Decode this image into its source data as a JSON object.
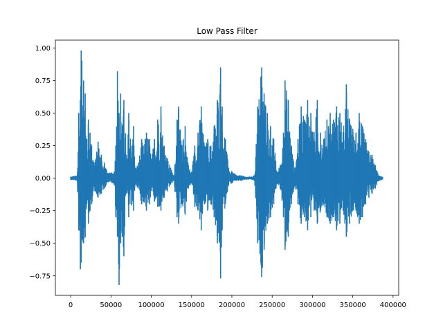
{
  "chart_data": {
    "type": "line",
    "title": "Low Pass Filter",
    "xlabel": "",
    "ylabel": "",
    "xlim": [
      -19000,
      407000
    ],
    "ylim": [
      -0.9,
      1.06
    ],
    "x_ticks": [
      0,
      50000,
      100000,
      150000,
      200000,
      250000,
      300000,
      350000,
      400000
    ],
    "x_tick_labels": [
      "0",
      "50000",
      "100000",
      "150000",
      "200000",
      "250000",
      "300000",
      "350000",
      "400000"
    ],
    "y_ticks": [
      -0.75,
      -0.5,
      -0.25,
      0.0,
      0.25,
      0.5,
      0.75,
      1.0
    ],
    "y_tick_labels": [
      "−0.75",
      "−0.50",
      "−0.25",
      "0.00",
      "0.25",
      "0.50",
      "0.75",
      "1.00"
    ],
    "grid": false,
    "line_color": "#1f77b4",
    "series": [
      {
        "x_min": 0,
        "x_max": 387000,
        "envelope_x": [
          0,
          8000,
          10000,
          12000,
          13000,
          16000,
          18000,
          20000,
          22000,
          24000,
          26000,
          30000,
          34000,
          38000,
          42000,
          46000,
          50000,
          54000,
          56000,
          58000,
          60000,
          62000,
          64000,
          66000,
          70000,
          72000,
          76000,
          78000,
          80000,
          84000,
          88000,
          90000,
          94000,
          98000,
          100000,
          104000,
          108000,
          112000,
          116000,
          120000,
          124000,
          128000,
          132000,
          134000,
          138000,
          142000,
          146000,
          150000,
          154000,
          158000,
          162000,
          166000,
          170000,
          174000,
          178000,
          182000,
          186000,
          188000,
          192000,
          196000,
          200000,
          204000,
          208000,
          212000,
          216000,
          220000,
          224000,
          228000,
          232000,
          236000,
          237000,
          240000,
          244000,
          248000,
          252000,
          256000,
          260000,
          264000,
          266000,
          270000,
          274000,
          278000,
          282000,
          286000,
          290000,
          294000,
          298000,
          302000,
          306000,
          310000,
          314000,
          318000,
          322000,
          326000,
          330000,
          334000,
          338000,
          342000,
          346000,
          350000,
          354000,
          358000,
          362000,
          366000,
          370000,
          374000,
          378000,
          382000,
          387000
        ],
        "envelope_upper": [
          0.01,
          0.02,
          0.5,
          0.6,
          0.98,
          0.75,
          0.65,
          0.3,
          0.45,
          0.35,
          0.25,
          0.12,
          0.28,
          0.18,
          0.12,
          0.04,
          0.04,
          0.05,
          0.25,
          0.82,
          0.5,
          0.65,
          0.4,
          0.6,
          0.15,
          0.5,
          0.25,
          0.4,
          0.08,
          0.12,
          0.3,
          0.25,
          0.35,
          0.3,
          0.15,
          0.3,
          0.45,
          0.55,
          0.25,
          0.15,
          0.08,
          0.02,
          0.45,
          0.55,
          0.25,
          0.4,
          0.1,
          0.05,
          0.25,
          0.35,
          0.55,
          0.25,
          0.3,
          0.25,
          0.4,
          0.6,
          0.85,
          0.55,
          0.3,
          0.08,
          0.05,
          0.03,
          0.02,
          0.02,
          0.01,
          0.01,
          0.01,
          0.02,
          0.55,
          0.78,
          0.85,
          0.65,
          0.5,
          0.4,
          0.3,
          0.05,
          0.1,
          0.35,
          0.75,
          0.6,
          0.25,
          0.08,
          0.3,
          0.55,
          0.45,
          0.6,
          0.5,
          0.35,
          0.6,
          0.35,
          0.3,
          0.45,
          0.5,
          0.45,
          0.55,
          0.5,
          0.35,
          0.72,
          0.45,
          0.38,
          0.35,
          0.5,
          0.4,
          0.3,
          0.2,
          0.18,
          0.1,
          0.02,
          0.01
        ],
        "envelope_lower": [
          -0.01,
          -0.02,
          -0.4,
          -0.7,
          -0.65,
          -0.5,
          -0.45,
          -0.2,
          -0.35,
          -0.25,
          -0.2,
          -0.1,
          -0.15,
          -0.12,
          -0.08,
          -0.03,
          -0.03,
          -0.05,
          -0.3,
          -0.45,
          -0.82,
          -0.5,
          -0.45,
          -0.6,
          -0.1,
          -0.3,
          -0.2,
          -0.25,
          -0.05,
          -0.08,
          -0.2,
          -0.18,
          -0.25,
          -0.2,
          -0.1,
          -0.18,
          -0.22,
          -0.25,
          -0.15,
          -0.1,
          -0.05,
          -0.02,
          -0.3,
          -0.35,
          -0.2,
          -0.28,
          -0.08,
          -0.04,
          -0.22,
          -0.25,
          -0.4,
          -0.2,
          -0.25,
          -0.2,
          -0.3,
          -0.5,
          -0.77,
          -0.4,
          -0.2,
          -0.05,
          -0.04,
          -0.02,
          -0.02,
          -0.02,
          -0.01,
          -0.01,
          -0.01,
          -0.02,
          -0.5,
          -0.65,
          -0.76,
          -0.55,
          -0.35,
          -0.3,
          -0.2,
          -0.04,
          -0.08,
          -0.3,
          -0.55,
          -0.45,
          -0.2,
          -0.06,
          -0.2,
          -0.35,
          -0.3,
          -0.4,
          -0.3,
          -0.25,
          -0.35,
          -0.25,
          -0.2,
          -0.3,
          -0.35,
          -0.3,
          -0.4,
          -0.35,
          -0.25,
          -0.45,
          -0.35,
          -0.25,
          -0.25,
          -0.35,
          -0.3,
          -0.2,
          -0.15,
          -0.12,
          -0.08,
          -0.02,
          -0.01
        ]
      }
    ]
  }
}
